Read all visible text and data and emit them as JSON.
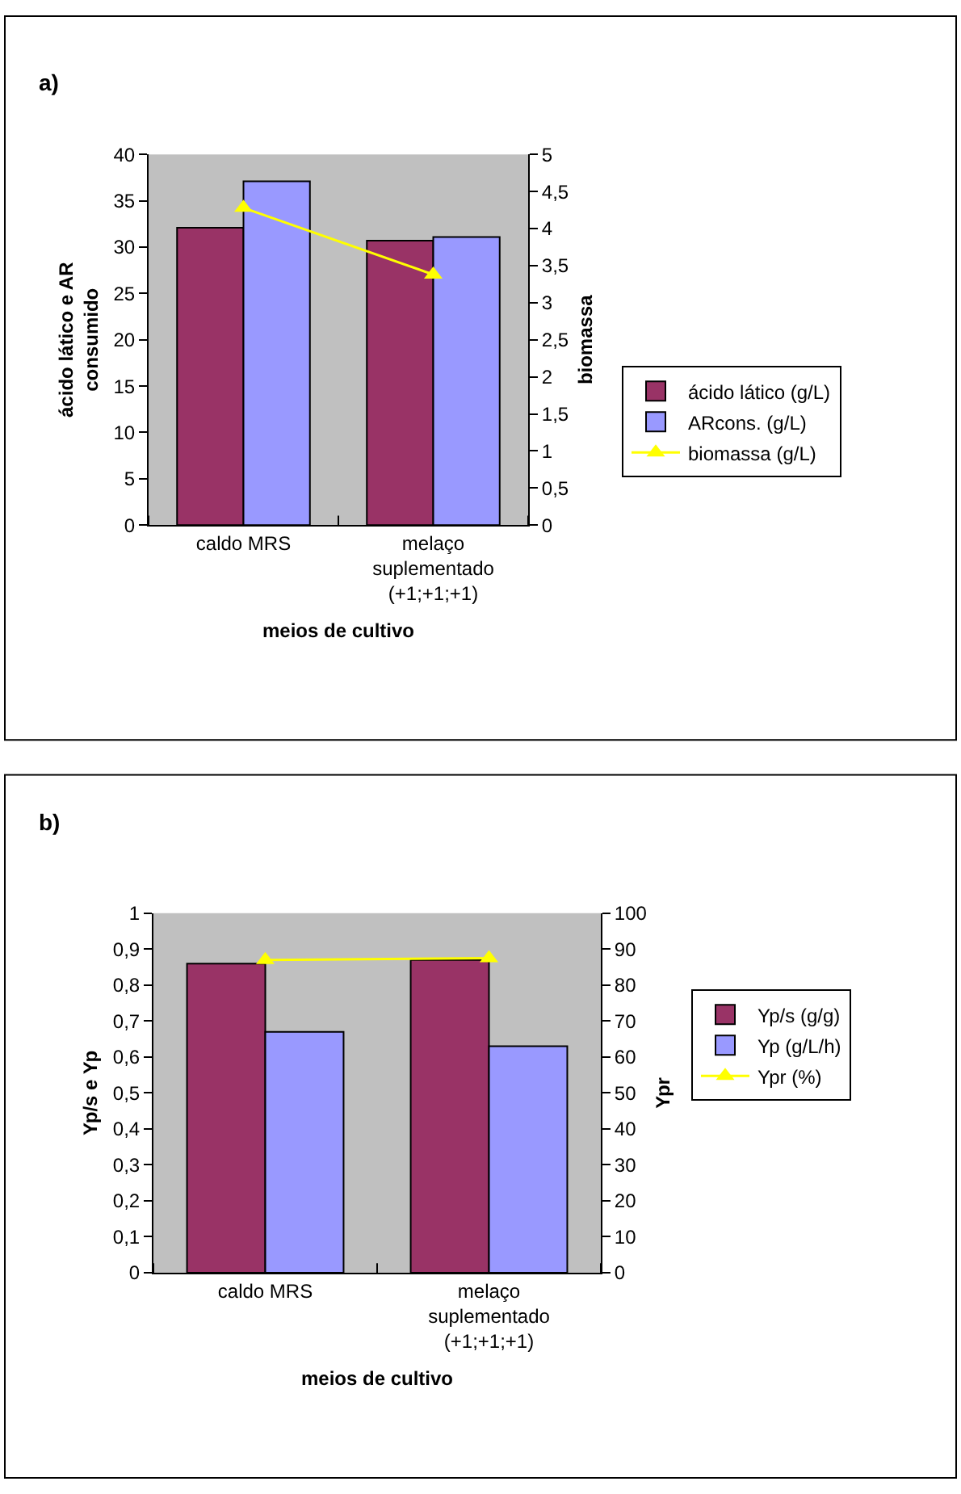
{
  "chart_data": [
    {
      "type": "bar",
      "title": "a)",
      "xlabel": "meios de cultivo",
      "ylabel": "ácido lático e AR\nconsumido",
      "y2label": "biomassa",
      "categories": [
        "caldo MRS",
        "melaço\nsuplementado\n(+1;+1;+1)"
      ],
      "series": [
        {
          "name": "ácido lático (g/L)",
          "color": "#993366",
          "values": [
            32.1,
            30.7
          ]
        },
        {
          "name": "ARcons. (g/L)",
          "color": "#9999ff",
          "values": [
            37.1,
            31.1
          ]
        },
        {
          "name": "biomassa (g/L)",
          "type": "line",
          "axis": "y2",
          "marker": "triangle",
          "color": "#ffff00",
          "values": [
            4.28,
            3.38
          ]
        }
      ],
      "ylim": [
        0,
        40
      ],
      "yticks": [
        0,
        5,
        10,
        15,
        20,
        25,
        30,
        35,
        40
      ],
      "y2lim": [
        0,
        5
      ],
      "y2ticks": [
        0,
        {
          "value": 0.5,
          "label": "0,5"
        },
        1,
        {
          "value": 1.5,
          "label": "1,5"
        },
        2,
        {
          "value": 2.5,
          "label": "2,5"
        },
        3,
        {
          "value": 3.5,
          "label": "3,5"
        },
        4,
        {
          "value": 4.5,
          "label": "4,5"
        },
        5
      ],
      "legend": "right",
      "grid": false
    },
    {
      "type": "bar",
      "title": "b)",
      "xlabel": "meios de cultivo",
      "ylabel": "Yp/s e Yp",
      "y2label": "Ypr",
      "categories": [
        "caldo MRS",
        "melaço\nsuplementado\n(+1;+1;+1)"
      ],
      "series": [
        {
          "name": "Yp/s (g/g)",
          "color": "#993366",
          "values": [
            0.86,
            0.87
          ]
        },
        {
          "name": "Yp (g/L/h)",
          "color": "#9999ff",
          "values": [
            0.67,
            0.63
          ]
        },
        {
          "name": "Ypr (%)",
          "type": "line",
          "axis": "y2",
          "marker": "triangle",
          "color": "#ffff00",
          "values": [
            87,
            87.5
          ]
        }
      ],
      "ylim": [
        0,
        1
      ],
      "yticks": [
        0,
        {
          "value": 0.1,
          "label": "0,1"
        },
        {
          "value": 0.2,
          "label": "0,2"
        },
        {
          "value": 0.3,
          "label": "0,3"
        },
        {
          "value": 0.4,
          "label": "0,4"
        },
        {
          "value": 0.5,
          "label": "0,5"
        },
        {
          "value": 0.6,
          "label": "0,6"
        },
        {
          "value": 0.7,
          "label": "0,7"
        },
        {
          "value": 0.8,
          "label": "0,8"
        },
        {
          "value": 0.9,
          "label": "0,9"
        },
        1
      ],
      "y2lim": [
        0,
        100
      ],
      "y2ticks": [
        0,
        10,
        20,
        30,
        40,
        50,
        60,
        70,
        80,
        90,
        100
      ],
      "legend": "right",
      "grid": false
    }
  ]
}
